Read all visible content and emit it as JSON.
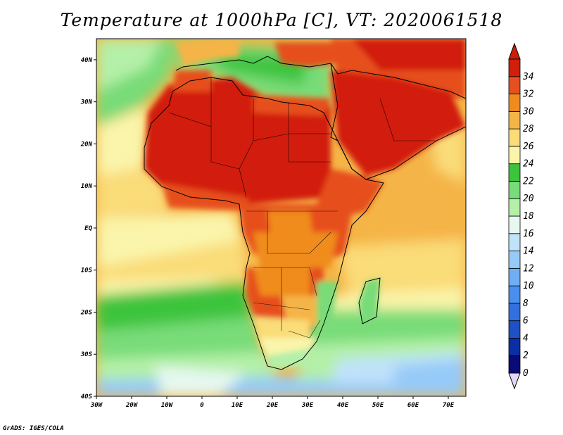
{
  "title": "Temperature at 1000hPa [C], VT: 2020061518",
  "footer": "GrADS: IGES/COLA",
  "map": {
    "lon_range": [
      -30,
      75
    ],
    "lat_range": [
      -40,
      45
    ],
    "x_ticks": [
      {
        "lon": -30,
        "label": "30W"
      },
      {
        "lon": -20,
        "label": "20W"
      },
      {
        "lon": -10,
        "label": "10W"
      },
      {
        "lon": 0,
        "label": "0"
      },
      {
        "lon": 10,
        "label": "10E"
      },
      {
        "lon": 20,
        "label": "20E"
      },
      {
        "lon": 30,
        "label": "30E"
      },
      {
        "lon": 40,
        "label": "40E"
      },
      {
        "lon": 50,
        "label": "50E"
      },
      {
        "lon": 60,
        "label": "60E"
      },
      {
        "lon": 70,
        "label": "70E"
      }
    ],
    "y_ticks": [
      {
        "lat": 40,
        "label": "40N"
      },
      {
        "lat": 30,
        "label": "30N"
      },
      {
        "lat": 20,
        "label": "20N"
      },
      {
        "lat": 10,
        "label": "10N"
      },
      {
        "lat": 0,
        "label": "EQ"
      },
      {
        "lat": -10,
        "label": "10S"
      },
      {
        "lat": -20,
        "label": "20S"
      },
      {
        "lat": -30,
        "label": "30S"
      },
      {
        "lat": -40,
        "label": "40S"
      }
    ]
  },
  "colorbar": {
    "levels": [
      "0",
      "2",
      "4",
      "6",
      "8",
      "10",
      "12",
      "14",
      "16",
      "18",
      "20",
      "22",
      "24",
      "26",
      "28",
      "30",
      "32",
      "34"
    ],
    "colors": [
      "#0a0a78",
      "#0a2ea8",
      "#1e50c8",
      "#3270e0",
      "#4a8ef0",
      "#6eaef5",
      "#96caf8",
      "#c0e2fa",
      "#e6f8f0",
      "#b4f0a8",
      "#78dc78",
      "#3cc43c",
      "#faf5aa",
      "#fadc78",
      "#f5b446",
      "#f08c1e",
      "#e6501e",
      "#d21e0a"
    ],
    "under_color": "#e0d8f8",
    "over_color": "#c81e0a"
  }
}
